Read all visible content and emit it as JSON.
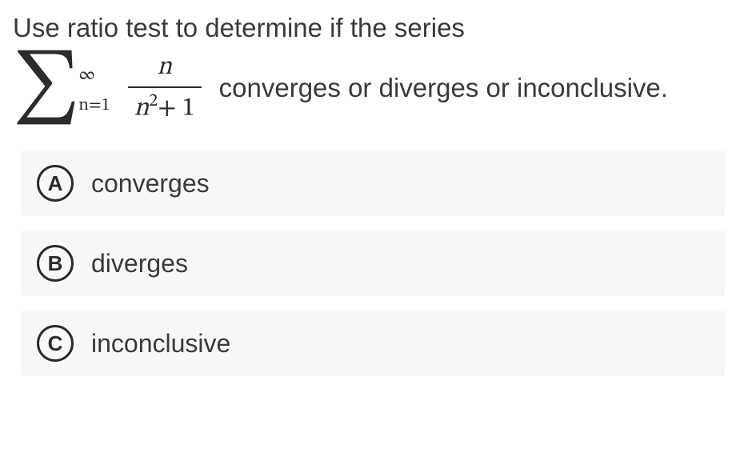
{
  "question": {
    "line1": "Use ratio test to determine if the series",
    "upper_bound": "∞",
    "lower_bound": "n=1",
    "numerator": "n",
    "denominator_var": "n",
    "denominator_exp": "2",
    "denominator_rest": "+ 1",
    "tail": "converges or diverges or inconclusive."
  },
  "choices": [
    {
      "letter": "A",
      "text": "converges"
    },
    {
      "letter": "B",
      "text": "diverges"
    },
    {
      "letter": "C",
      "text": "inconclusive"
    }
  ],
  "style": {
    "bg": "#ffffff",
    "choice_bg": "#f7f7f7",
    "text_color": "#3a3a3a",
    "circle_border": "#2b2b2b",
    "circle_border_w": 3.5,
    "font_size_question": 33,
    "font_size_choice": 32,
    "font_size_letter": 26
  }
}
